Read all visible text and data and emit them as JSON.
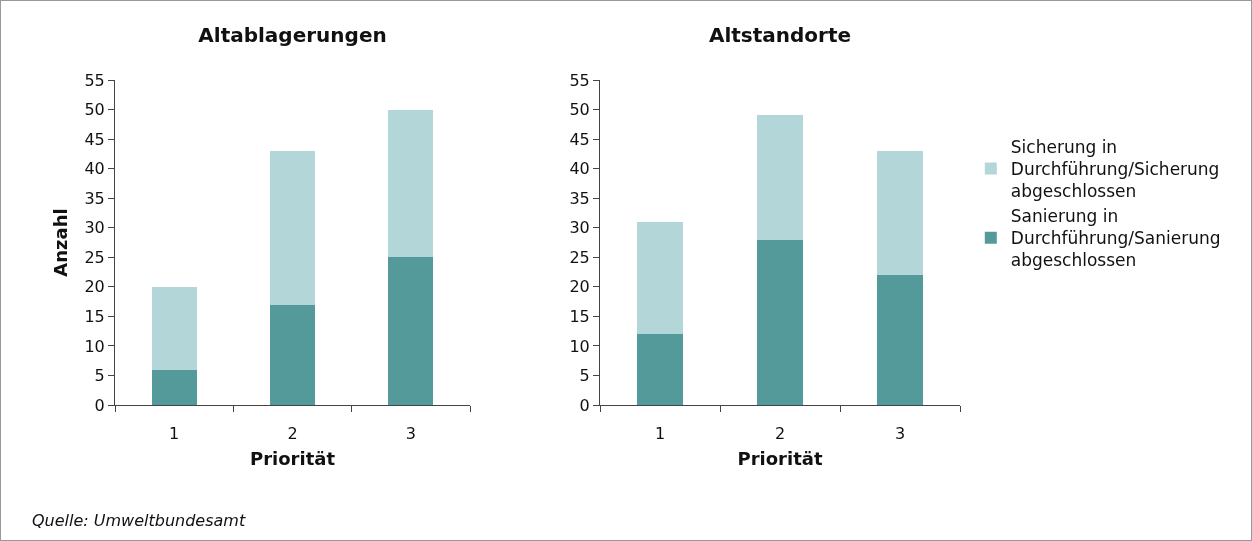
{
  "chart_data": [
    {
      "type": "bar",
      "title": "Altablagerungen",
      "xlabel": "Priorität",
      "ylabel": "Anzahl",
      "categories": [
        "1",
        "2",
        "3"
      ],
      "stacked": true,
      "ylim": [
        0,
        55
      ],
      "yticks": [
        0,
        5,
        10,
        15,
        20,
        25,
        30,
        35,
        40,
        45,
        50,
        55
      ],
      "grid": false,
      "annotations": [
        "Quelle: Umweltbundesamt"
      ],
      "series": [
        {
          "color": "#559a9b",
          "values": [
            6,
            17,
            25
          ]
        },
        {
          "color": "#b3d7d9",
          "values": [
            14,
            26,
            25
          ]
        }
      ]
    },
    {
      "type": "bar",
      "title": "Altstandorte",
      "xlabel": "Priorität",
      "categories": [
        "1",
        "2",
        "3"
      ],
      "stacked": true,
      "ylim": [
        0,
        55
      ],
      "yticks": [
        0,
        5,
        10,
        15,
        20,
        25,
        30,
        35,
        40,
        45,
        50,
        55
      ],
      "grid": false,
      "legend": "right",
      "series": [
        {
          "name": "Sanierung in Durchführung/Sanierung abgeschlossen",
          "color": "#559a9b",
          "values": [
            12,
            28,
            22
          ]
        },
        {
          "name": "Sicherung in Durchführung/Sicherung abgeschlossen",
          "color": "#b3d7d9",
          "values": [
            19,
            21,
            21
          ]
        }
      ]
    }
  ]
}
